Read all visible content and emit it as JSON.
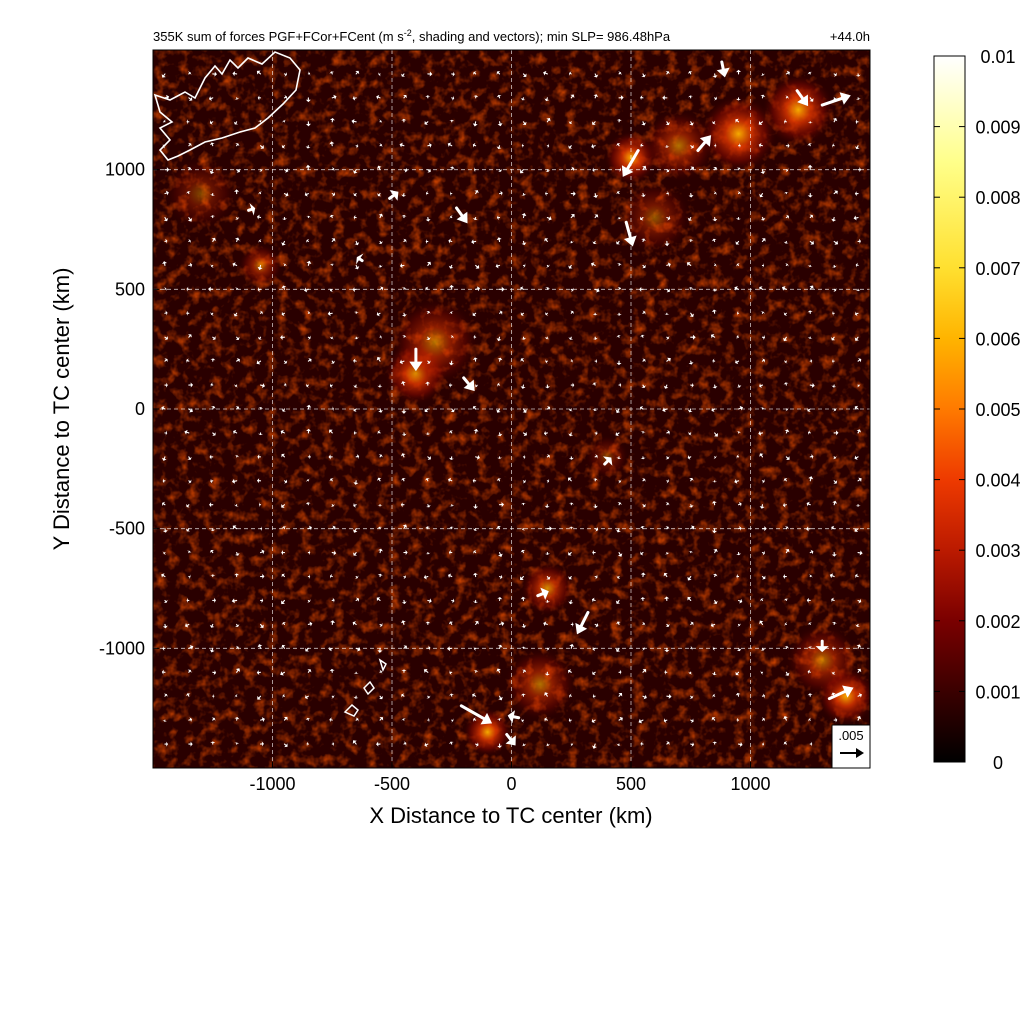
{
  "chart_data": {
    "type": "heatmap",
    "title_main": "355K sum of forces PGF+FCor+FCent (m s",
    "title_sup": "-2",
    "title_rest": ", shading and vectors); min SLP= 986.48hPa",
    "time_label": "+44.0h",
    "xlabel": "X Distance to TC center (km)",
    "ylabel": "Y Distance to TC center (km)",
    "xlim": [
      -1500,
      1500
    ],
    "ylim": [
      -1500,
      1500
    ],
    "xticks": [
      -1000,
      -500,
      0,
      500,
      1000
    ],
    "xtick_labels": [
      "-1000",
      "-500",
      "0",
      "500",
      "1000"
    ],
    "yticks": [
      -1000,
      -500,
      0,
      500,
      1000
    ],
    "ytick_labels": [
      "-1000",
      "-500",
      "0",
      "500",
      "1000"
    ],
    "grid": true,
    "colormap": [
      "#000000",
      "#3a0000",
      "#7a0000",
      "#bb1a00",
      "#ee3a00",
      "#ff7a00",
      "#ffb400",
      "#ffe030",
      "#ffff8a",
      "#ffffff"
    ],
    "colorbar_ticks": [
      0,
      0.001,
      0.002,
      0.003,
      0.004,
      0.005,
      0.006,
      0.007,
      0.008,
      0.009,
      0.01
    ],
    "colorbar_labels": [
      "0",
      "0.001",
      "0.002",
      "0.003",
      "0.004",
      "0.005",
      "0.006",
      "0.007",
      "0.008",
      "0.009",
      "0.01"
    ],
    "vmin": 0,
    "vmax": 0.01,
    "reference_vector_label": ".005",
    "reference_vector_value": 0.005,
    "hotspots": [
      {
        "x": -400,
        "y": 150,
        "v": 0.0065,
        "r": 130
      },
      {
        "x": -320,
        "y": 280,
        "v": 0.004,
        "r": 180
      },
      {
        "x": 500,
        "y": 1050,
        "v": 0.006,
        "r": 110
      },
      {
        "x": 950,
        "y": 1150,
        "v": 0.008,
        "r": 160
      },
      {
        "x": 1200,
        "y": 1250,
        "v": 0.006,
        "r": 150
      },
      {
        "x": 700,
        "y": 1100,
        "v": 0.004,
        "r": 150
      },
      {
        "x": 150,
        "y": -750,
        "v": 0.005,
        "r": 110
      },
      {
        "x": 120,
        "y": -1150,
        "v": 0.004,
        "r": 150
      },
      {
        "x": -100,
        "y": -1350,
        "v": 0.006,
        "r": 100
      },
      {
        "x": 1400,
        "y": -1200,
        "v": 0.008,
        "r": 120
      },
      {
        "x": 1300,
        "y": -1050,
        "v": 0.004,
        "r": 150
      },
      {
        "x": -1050,
        "y": 600,
        "v": 0.004,
        "r": 90
      },
      {
        "x": -1300,
        "y": 900,
        "v": 0.0025,
        "r": 150
      },
      {
        "x": 400,
        "y": -200,
        "v": 0.0025,
        "r": 90
      },
      {
        "x": 600,
        "y": 800,
        "v": 0.003,
        "r": 150
      }
    ],
    "vectors": [
      {
        "x": -400,
        "y": 250,
        "u": 0.0,
        "v": -0.005
      },
      {
        "x": -200,
        "y": 130,
        "u": 0.0025,
        "v": -0.003
      },
      {
        "x": 530,
        "y": 1080,
        "u": -0.0035,
        "v": -0.006
      },
      {
        "x": 480,
        "y": 780,
        "u": 0.0015,
        "v": -0.0055
      },
      {
        "x": 780,
        "y": 1080,
        "u": 0.003,
        "v": 0.0035
      },
      {
        "x": 1300,
        "y": 1270,
        "u": 0.0065,
        "v": 0.0022
      },
      {
        "x": 1195,
        "y": 1330,
        "u": 0.0025,
        "v": -0.0035
      },
      {
        "x": 880,
        "y": 1450,
        "u": 0.0007,
        "v": -0.0035
      },
      {
        "x": -230,
        "y": 840,
        "u": 0.0025,
        "v": -0.0035
      },
      {
        "x": -510,
        "y": 880,
        "u": 0.002,
        "v": 0.0015
      },
      {
        "x": -625,
        "y": 620,
        "u": -0.0012,
        "v": 0.0008
      },
      {
        "x": 110,
        "y": -780,
        "u": 0.0025,
        "v": 0.001
      },
      {
        "x": 320,
        "y": -850,
        "u": -0.0025,
        "v": -0.005
      },
      {
        "x": -210,
        "y": -1240,
        "u": 0.007,
        "v": -0.004
      },
      {
        "x": 30,
        "y": -1290,
        "u": -0.0025,
        "v": 0.0005
      },
      {
        "x": -20,
        "y": -1360,
        "u": 0.002,
        "v": -0.0025
      },
      {
        "x": 1330,
        "y": -1210,
        "u": 0.0055,
        "v": 0.0025
      },
      {
        "x": 1300,
        "y": -970,
        "u": 0.0,
        "v": -0.0025
      },
      {
        "x": 390,
        "y": -230,
        "u": 0.0015,
        "v": 0.0015
      },
      {
        "x": -1100,
        "y": 830,
        "u": 0.0015,
        "v": 0.0005
      }
    ]
  }
}
